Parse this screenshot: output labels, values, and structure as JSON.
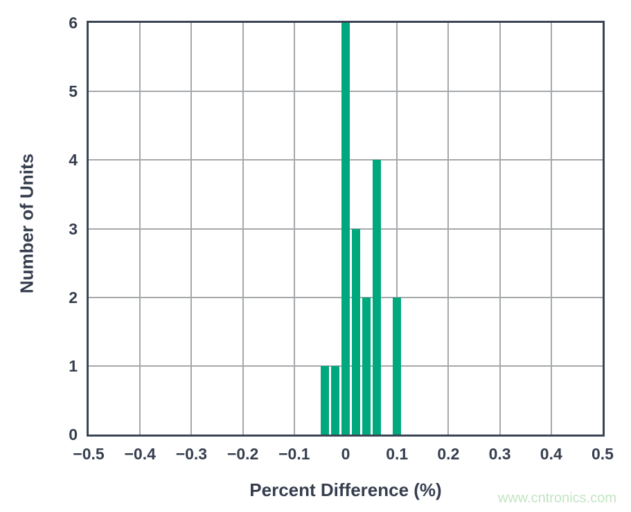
{
  "page": {
    "background": "#ffffff"
  },
  "watermark": {
    "text": "www.cntronics.com",
    "color": "#c3e4c3"
  },
  "chart_data": {
    "type": "bar",
    "subtype": "histogram",
    "title": "",
    "xlabel": "Percent Difference (%)",
    "ylabel": "Number of Units",
    "xlim": [
      -0.5,
      0.5
    ],
    "ylim": [
      0,
      6
    ],
    "x_ticks": [
      -0.5,
      -0.4,
      -0.3,
      -0.2,
      -0.1,
      0,
      0.1,
      0.2,
      0.3,
      0.4,
      0.5
    ],
    "x_tick_labels": [
      "−0.5",
      "−0.4",
      "−0.3",
      "−0.2",
      "−0.1",
      "0",
      "0.1",
      "0.2",
      "0.3",
      "0.4",
      "0.5"
    ],
    "y_ticks": [
      0,
      1,
      2,
      3,
      4,
      5,
      6
    ],
    "y_tick_labels": [
      "0",
      "1",
      "2",
      "3",
      "4",
      "5",
      "6"
    ],
    "bin_width": 0.02,
    "bars": [
      {
        "x": -0.04,
        "count": 1
      },
      {
        "x": -0.02,
        "count": 1
      },
      {
        "x": 0.0,
        "count": 6
      },
      {
        "x": 0.02,
        "count": 3
      },
      {
        "x": 0.04,
        "count": 2
      },
      {
        "x": 0.06,
        "count": 4
      },
      {
        "x": 0.1,
        "count": 2
      }
    ],
    "grid": true,
    "legend": false,
    "colors": {
      "bar": "#00a87d",
      "axis": "#3a4454",
      "text": "#363e4e",
      "grid": "#a5a7aa"
    }
  }
}
